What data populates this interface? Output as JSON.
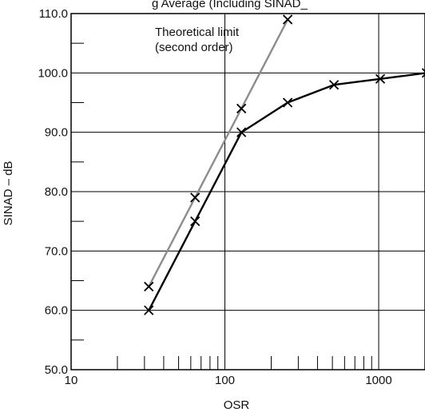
{
  "chart_data": {
    "type": "line",
    "title": "",
    "title_partial": "g Average (Including SINAD_",
    "xlabel": "OSR",
    "ylabel": "SINAD – dB",
    "x_scale": "log",
    "xlim": [
      10,
      2000
    ],
    "ylim": [
      50,
      110
    ],
    "x_ticks": [
      10,
      100,
      1000
    ],
    "x_tick_labels": [
      "10",
      "100",
      "1000"
    ],
    "y_ticks": [
      50,
      60,
      70,
      80,
      90,
      100,
      110
    ],
    "y_tick_labels": [
      "50.0",
      "60.0",
      "70.0",
      "80.0",
      "90.0",
      "100.0",
      "110.0"
    ],
    "grid": true,
    "annotation_lines": [
      "Theoretical limit",
      "(second order)"
    ],
    "series": [
      {
        "name": "Theoretical limit (second order)",
        "color": "#8c8c8c",
        "x": [
          32,
          64,
          128,
          256
        ],
        "y": [
          64,
          79,
          94,
          109
        ]
      },
      {
        "name": "",
        "color": "#000000",
        "x": [
          32,
          64,
          128,
          256,
          512,
          1024,
          2048
        ],
        "y": [
          60,
          75,
          90,
          95,
          98,
          99,
          100
        ]
      }
    ]
  }
}
